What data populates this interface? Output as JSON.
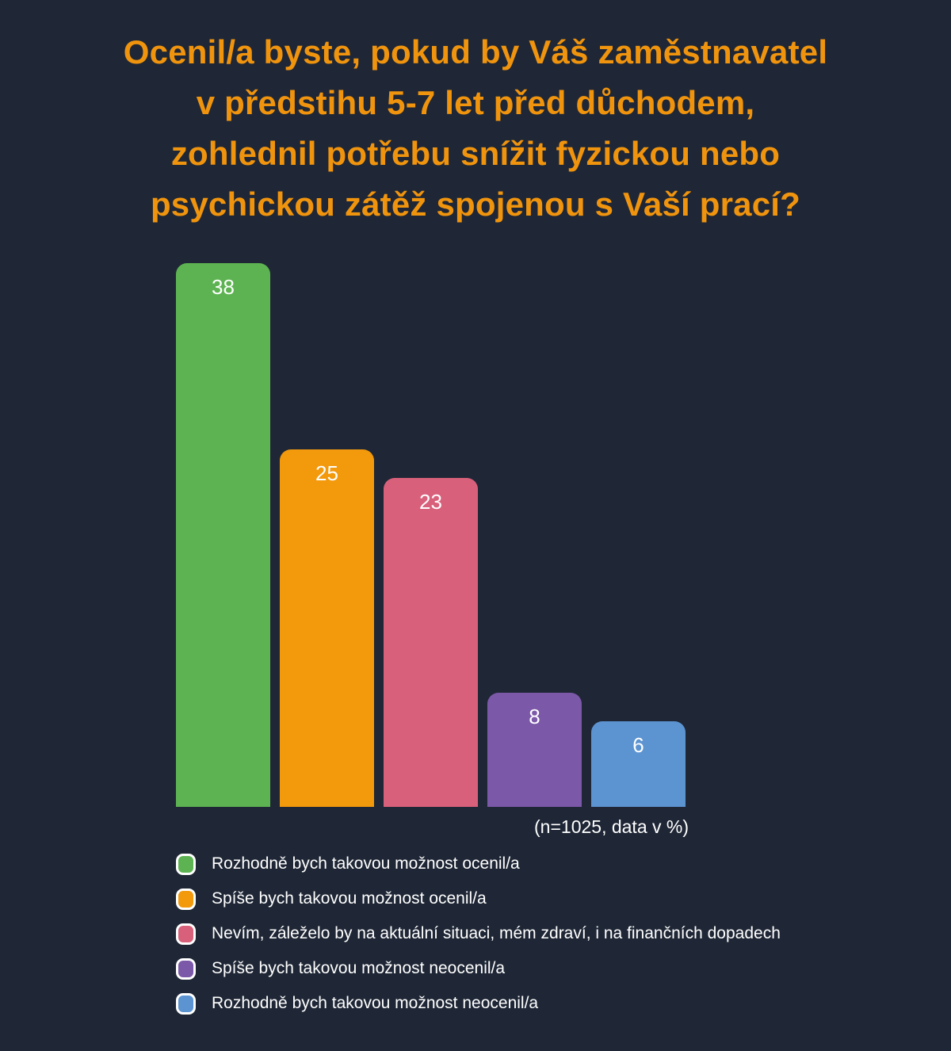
{
  "title_lines": [
    "Ocenil/a byste, pokud by Váš zaměstnavatel",
    "v předstihu 5-7 let před důchodem,",
    "zohlednil potřebu snížit fyzickou nebo",
    "psychickou zátěž spojenou s Vaší prací?"
  ],
  "chart_data": {
    "type": "bar",
    "title": "Ocenil/a byste, pokud by Váš zaměstnavatel v předstihu 5-7 let před důchodem, zohlednil potřebu snížit fyzickou nebo psychickou zátěž spojenou s Vaší prací?",
    "categories": [
      "Rozhodně bych takovou možnost ocenil/a",
      "Spíše bych takovou možnost ocenil/a",
      "Nevím, záleželo by na aktuální situaci, mém zdraví, i na finančních dopadech",
      "Spíše bych takovou možnost neocenil/a",
      "Rozhodně bych takovou možnost neocenil/a"
    ],
    "values": [
      38,
      25,
      23,
      8,
      6
    ],
    "colors": [
      "#5db351",
      "#f2990c",
      "#d8607a",
      "#7c58a9",
      "#5c93d1"
    ],
    "unit": "%",
    "ylim": [
      0,
      38
    ],
    "grid": false,
    "legend_position": "bottom",
    "annotation": "(n=1025, data v %)",
    "xlabel": "",
    "ylabel": ""
  },
  "colors": {
    "background": "#1f2736",
    "title_text": "#f0940e",
    "value_text": "#ffffff",
    "legend_text": "#ffffff"
  }
}
